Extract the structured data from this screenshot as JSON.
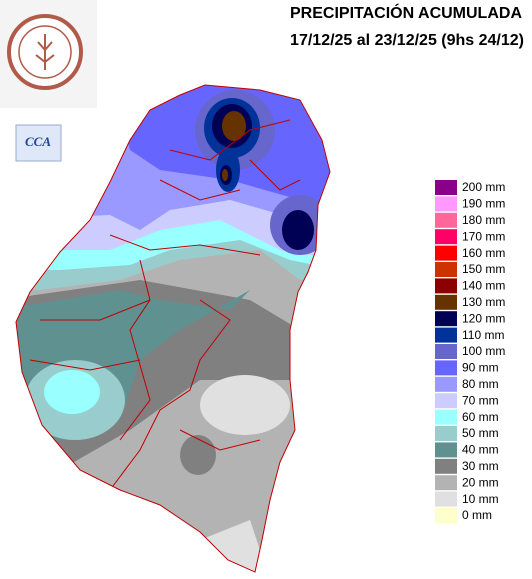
{
  "header": {
    "title": "PRECIPITACIÓN ACUMULADA",
    "subtitle": "17/12/25 al 23/12/25 (9hs 24/12)"
  },
  "logos": {
    "cca_label": "CCA"
  },
  "legend": {
    "items": [
      {
        "label": "200 mm",
        "color": "#8b008b"
      },
      {
        "label": "190 mm",
        "color": "#ff99ff"
      },
      {
        "label": "180 mm",
        "color": "#ff6699"
      },
      {
        "label": "170 mm",
        "color": "#ff0066"
      },
      {
        "label": "160 mm",
        "color": "#ff0000"
      },
      {
        "label": "150 mm",
        "color": "#cc3300"
      },
      {
        "label": "140 mm",
        "color": "#8b0000"
      },
      {
        "label": "130 mm",
        "color": "#663300"
      },
      {
        "label": "120 mm",
        "color": "#000055"
      },
      {
        "label": "110 mm",
        "color": "#003399"
      },
      {
        "label": "100 mm",
        "color": "#6666cc"
      },
      {
        "label": "90 mm",
        "color": "#6666ff"
      },
      {
        "label": "80 mm",
        "color": "#9999ff"
      },
      {
        "label": "70 mm",
        "color": "#ccccff"
      },
      {
        "label": "60 mm",
        "color": "#99ffff"
      },
      {
        "label": "50 mm",
        "color": "#99cccc"
      },
      {
        "label": "40 mm",
        "color": "#5f9191"
      },
      {
        "label": "30 mm",
        "color": "#808080"
      },
      {
        "label": "20 mm",
        "color": "#b3b3b3"
      },
      {
        "label": "10 mm",
        "color": "#e0e0e0"
      },
      {
        "label": "0 mm",
        "color": "#ffffcc"
      }
    ]
  }
}
